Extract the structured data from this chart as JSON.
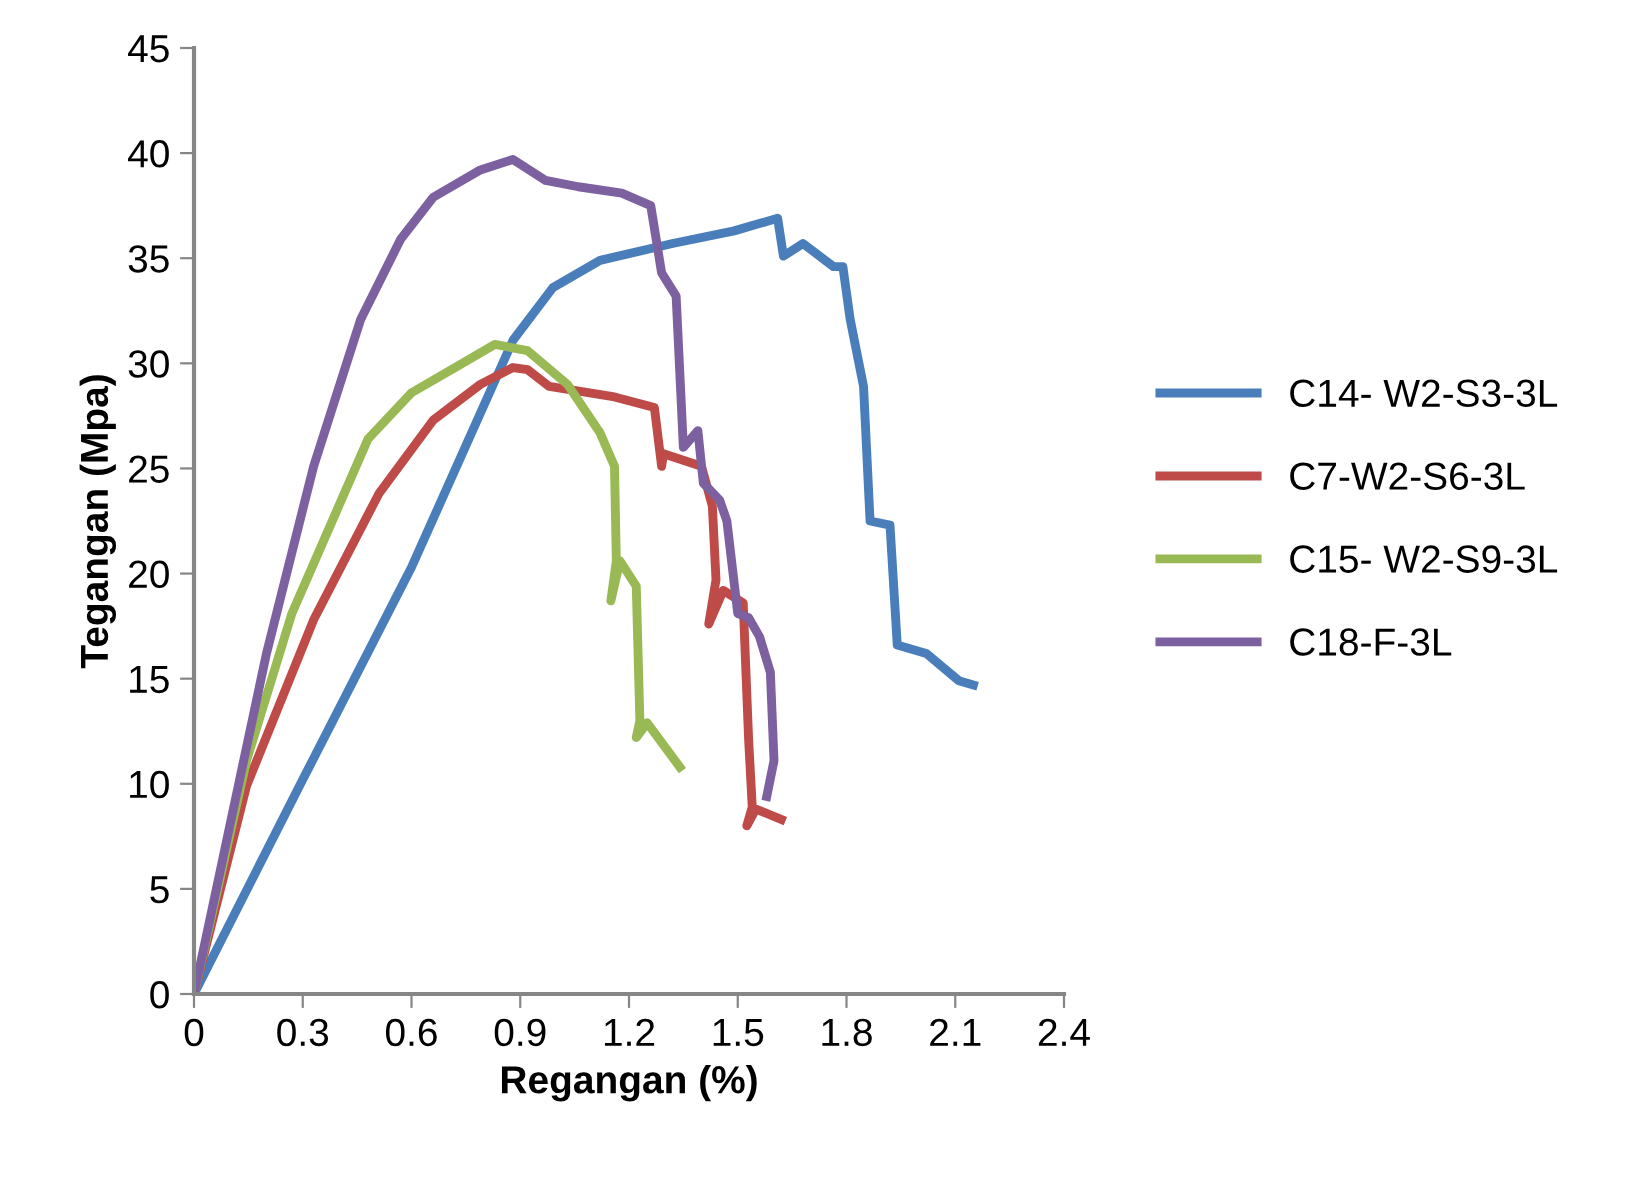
{
  "chart_data": {
    "type": "line",
    "xlabel": "Regangan (%)",
    "ylabel": "Tegangan (Mpa)",
    "xlim": [
      0,
      2.4
    ],
    "xticks": [
      0,
      0.3,
      0.6,
      0.9,
      1.2,
      1.5,
      1.8,
      2.1,
      2.4
    ],
    "ylim": [
      0,
      45
    ],
    "yticks": [
      0,
      5,
      10,
      15,
      20,
      25,
      30,
      35,
      40,
      45
    ],
    "grid": false,
    "legend": "right",
    "marker": "none",
    "line_style": "solid",
    "series": [
      {
        "name": "C14- W2-S3-3L",
        "color": "#4a7ebb",
        "x": [
          0,
          0.3,
          0.6,
          0.88,
          0.99,
          1.12,
          1.32,
          1.49,
          1.61,
          1.626,
          1.68,
          1.764,
          1.79,
          1.81,
          1.847,
          1.865,
          1.92,
          1.94,
          2.02,
          2.11,
          2.15
        ],
        "values": [
          0,
          10.2,
          20.3,
          31.1,
          33.6,
          34.9,
          35.7,
          36.3,
          36.9,
          35.1,
          35.7,
          34.6,
          34.6,
          32.1,
          28.9,
          22.5,
          22.3,
          16.6,
          16.2,
          14.9,
          14.7
        ]
      },
      {
        "name": "C7-W2-S6-3L",
        "color": "#be4b48",
        "x": [
          0,
          0.145,
          0.33,
          0.51,
          0.66,
          0.79,
          0.88,
          0.92,
          0.98,
          1.16,
          1.27,
          1.29,
          1.295,
          1.4,
          1.43,
          1.44,
          1.42,
          1.46,
          1.515,
          1.53,
          1.54,
          1.525,
          1.55,
          1.62
        ],
        "values": [
          0,
          9.9,
          17.8,
          23.8,
          27.3,
          29.0,
          29.8,
          29.7,
          28.9,
          28.4,
          27.9,
          25.1,
          25.7,
          25.1,
          23.2,
          19.7,
          17.6,
          19.2,
          18.6,
          12.1,
          8.9,
          8.0,
          8.8,
          8.3
        ]
      },
      {
        "name": "C15- W2-S9-3L",
        "color": "#98b954",
        "x": [
          0,
          0.145,
          0.27,
          0.48,
          0.6,
          0.72,
          0.83,
          0.92,
          1.03,
          1.12,
          1.16,
          1.165,
          1.15,
          1.175,
          1.22,
          1.23,
          1.22,
          1.25,
          1.34
        ],
        "values": [
          0,
          11.1,
          18.1,
          26.4,
          28.6,
          29.8,
          30.9,
          30.6,
          29.0,
          26.7,
          25.1,
          20.6,
          18.7,
          20.6,
          19.4,
          13.0,
          12.2,
          12.9,
          10.8
        ]
      },
      {
        "name": "C18-F-3L",
        "color": "#7d60a0",
        "x": [
          0,
          0.2,
          0.33,
          0.46,
          0.57,
          0.66,
          0.79,
          0.88,
          0.97,
          1.06,
          1.18,
          1.26,
          1.29,
          1.33,
          1.35,
          1.39,
          1.405,
          1.45,
          1.47,
          1.5,
          1.53,
          1.56,
          1.59,
          1.6,
          1.58
        ],
        "values": [
          0,
          16.2,
          25.1,
          32.1,
          35.9,
          37.9,
          39.2,
          39.7,
          38.7,
          38.4,
          38.1,
          37.5,
          34.3,
          33.2,
          26.0,
          26.8,
          24.3,
          23.5,
          22.5,
          18.1,
          17.9,
          17.0,
          15.3,
          11.1,
          9.4
        ]
      }
    ]
  }
}
